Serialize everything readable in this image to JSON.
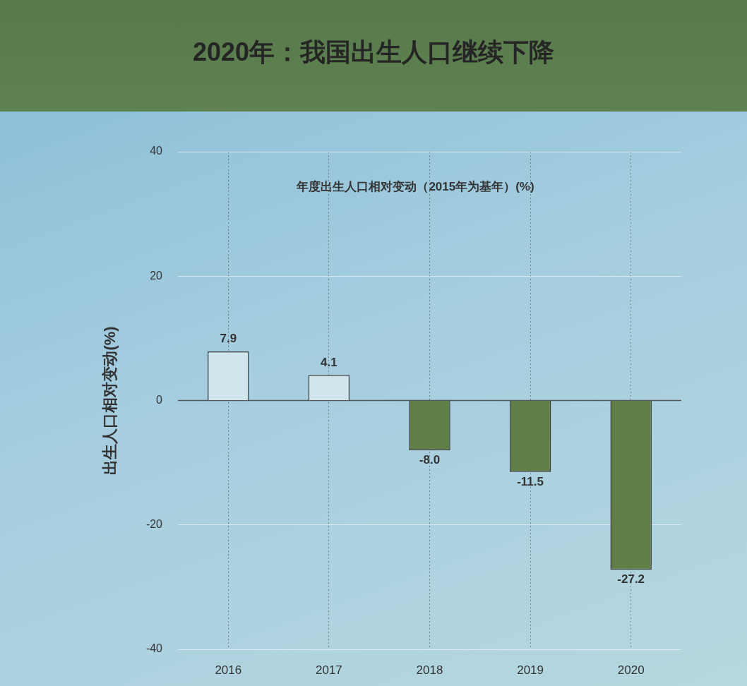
{
  "chart_data": {
    "type": "bar",
    "title": "2020年：我国出生人口继续下降",
    "subtitle": "年度出生人口相对变动（2015年为基年）(%)",
    "ylabel": "出生人口相对变动(%)",
    "categories": [
      "2016",
      "2017",
      "2018",
      "2019",
      "2020"
    ],
    "values": [
      7.9,
      4.1,
      -8.0,
      -11.5,
      -27.2
    ],
    "value_labels": [
      "7.9",
      "4.1",
      "-8.0",
      "-11.5",
      "-27.2"
    ],
    "colors": [
      "#cfe4eb",
      "#cfe4eb",
      "#5f7f47",
      "#5f7f47",
      "#5f7f47"
    ],
    "ylim": [
      -40,
      40
    ],
    "yticks": [
      -40,
      -20,
      0,
      20,
      40
    ],
    "grid": true
  }
}
